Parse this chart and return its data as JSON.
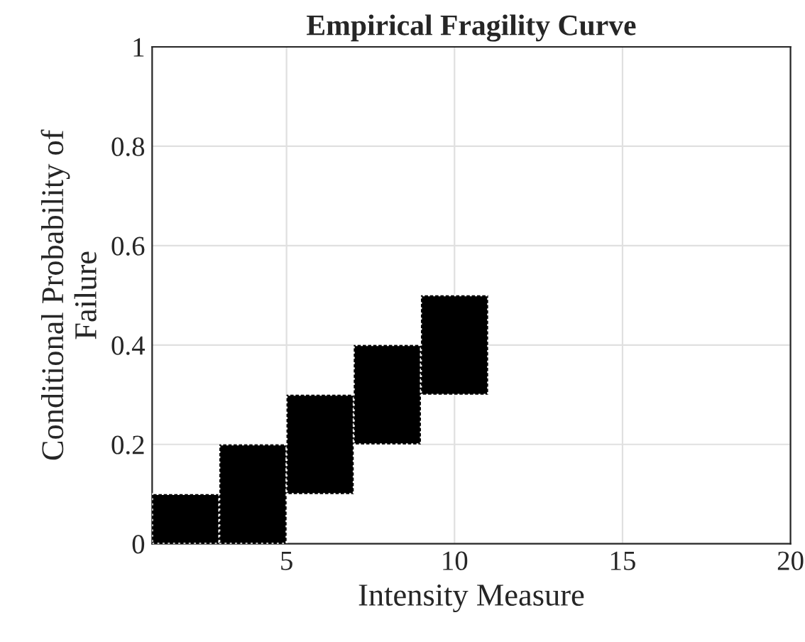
{
  "chart_data": {
    "type": "bar",
    "title": "Empirical Fragility Curve",
    "xlabel": "Intensity Measure",
    "ylabel": "Conditional Probability of\nFailure",
    "x": [
      2,
      4,
      6,
      8,
      10
    ],
    "base": [
      0,
      0,
      0.1,
      0.2,
      0.3
    ],
    "values": [
      0.1,
      0.2,
      0.2,
      0.2,
      0.2
    ],
    "color": "#000000",
    "xlim": [
      1,
      20
    ],
    "xticks": [
      5,
      10,
      15,
      20
    ],
    "ylim": [
      0,
      1
    ],
    "yticks": [
      0,
      0.2,
      0.4,
      0.6,
      0.8,
      1
    ],
    "grid": true
  }
}
